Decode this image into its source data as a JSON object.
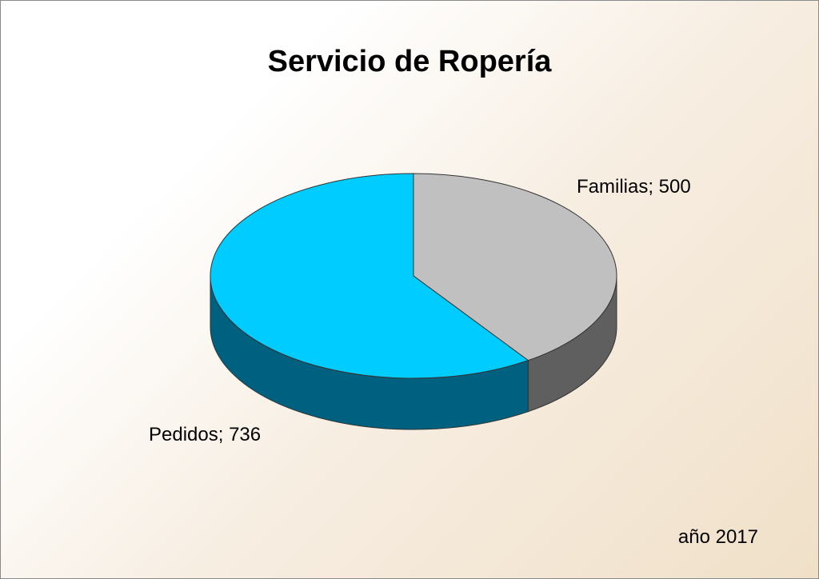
{
  "chart_data": {
    "type": "pie",
    "style": "3d",
    "title": "Servicio de Ropería",
    "categories": [
      "Familias",
      "Pedidos"
    ],
    "values": [
      500,
      736
    ],
    "labels": [
      "Familias; 500",
      "Pedidos; 736"
    ],
    "colors": {
      "Familias": {
        "top": "#c0c0c0",
        "side": "#5f5f5f"
      },
      "Pedidos": {
        "top": "#00ccff",
        "side": "#006080"
      }
    },
    "legend": "none",
    "footnote": "año 2017"
  }
}
